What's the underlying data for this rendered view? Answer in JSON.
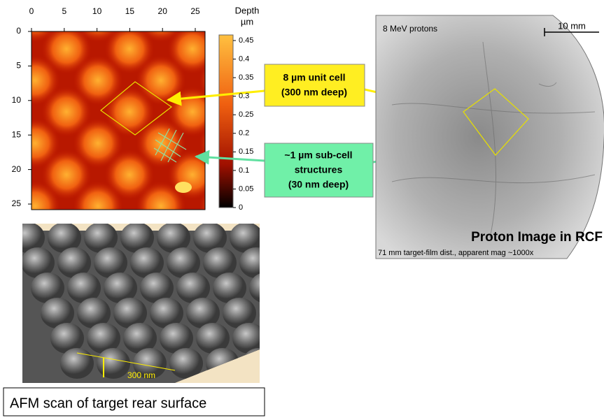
{
  "afm_map": {
    "x_ticks": [
      0,
      5,
      10,
      15,
      20,
      25
    ],
    "y_ticks": [
      0,
      5,
      10,
      15,
      20,
      25
    ],
    "colorbar": {
      "title": "Depth",
      "unit": "µm",
      "ticks": [
        0.45,
        0.4,
        0.35,
        0.3,
        0.25,
        0.2,
        0.15,
        0.1,
        0.05,
        0
      ]
    }
  },
  "callouts": {
    "unit_cell": [
      "8 µm unit cell",
      "(300 nm deep)"
    ],
    "sub_cell": [
      "~1 µm sub-cell",
      "structures",
      "(30 nm deep)"
    ]
  },
  "proton_image": {
    "label": "8 MeV protons",
    "scale": "10 mm",
    "title": "Proton Image in RCF",
    "note": "71 mm target-film dist., apparent mag ~1000x"
  },
  "afm_3d": {
    "height_label": "300 nm",
    "caption": "AFM scan of target rear surface"
  }
}
